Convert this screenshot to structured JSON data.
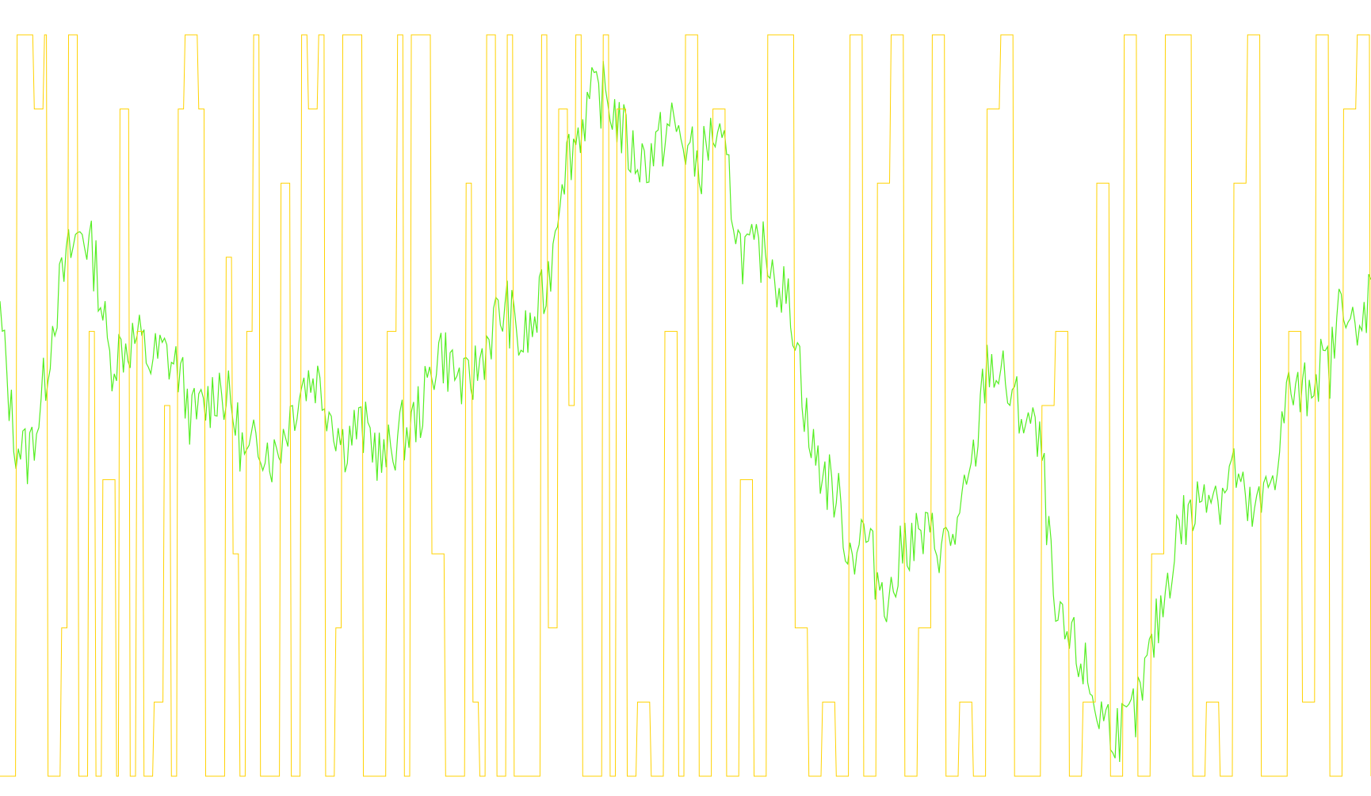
{
  "chart_data": {
    "type": "line",
    "title": "",
    "xlabel": "",
    "ylabel": "",
    "grid": false,
    "legend": "none",
    "colors": {
      "background": "#ffffff",
      "price": "#55ee22",
      "oscillator": "#ffd200"
    },
    "series": [
      {
        "key": "price",
        "color": "#55ee22",
        "ylim": [
          0,
          1
        ],
        "x": [
          0,
          10,
          20,
          30,
          40,
          50,
          60,
          70,
          80,
          90,
          100,
          110,
          120,
          130,
          140,
          150,
          160,
          170,
          180,
          190,
          200,
          210,
          220,
          230,
          240,
          250,
          260,
          270,
          280,
          290,
          300,
          310,
          320,
          330,
          340,
          350,
          360,
          370,
          380,
          390,
          400,
          410,
          420,
          430,
          440,
          450,
          460,
          470,
          480,
          490,
          500,
          510,
          520,
          530,
          540,
          550,
          560,
          570,
          580,
          590,
          600,
          610,
          620,
          630,
          640,
          650,
          660,
          670,
          680,
          690,
          700,
          710,
          720,
          730,
          740,
          750,
          760,
          770,
          780,
          790,
          800,
          810,
          820,
          830,
          840,
          850,
          860,
          870,
          880,
          890,
          900,
          910,
          920,
          930,
          940,
          950,
          960,
          970,
          980,
          990,
          1000
        ],
        "values": [
          0.62,
          0.46,
          0.43,
          0.5,
          0.63,
          0.7,
          0.74,
          0.69,
          0.56,
          0.58,
          0.59,
          0.56,
          0.57,
          0.55,
          0.48,
          0.5,
          0.53,
          0.49,
          0.42,
          0.46,
          0.43,
          0.48,
          0.53,
          0.54,
          0.5,
          0.45,
          0.47,
          0.46,
          0.42,
          0.46,
          0.47,
          0.51,
          0.58,
          0.55,
          0.52,
          0.56,
          0.61,
          0.63,
          0.58,
          0.61,
          0.67,
          0.82,
          0.86,
          0.91,
          0.92,
          0.89,
          0.84,
          0.83,
          0.85,
          0.88,
          0.85,
          0.82,
          0.87,
          0.82,
          0.71,
          0.7,
          0.71,
          0.66,
          0.61,
          0.45,
          0.41,
          0.38,
          0.3,
          0.33,
          0.27,
          0.24,
          0.32,
          0.32,
          0.32,
          0.31,
          0.34,
          0.42,
          0.56,
          0.54,
          0.5,
          0.48,
          0.43,
          0.2,
          0.18,
          0.15,
          0.09,
          0.07,
          0.06,
          0.09,
          0.17,
          0.25,
          0.34,
          0.35,
          0.4,
          0.38,
          0.42,
          0.35,
          0.36,
          0.42,
          0.52,
          0.51,
          0.55,
          0.55,
          0.66,
          0.57,
          0.67
        ],
        "y_from_top": true
      },
      {
        "key": "oscillator",
        "color": "#ffd200",
        "ylim": [
          0,
          1
        ],
        "x": [
          0,
          2,
          5,
          8,
          10,
          13,
          14,
          16,
          18,
          20,
          23,
          26,
          28,
          30,
          34,
          35,
          38,
          40,
          42,
          45,
          48,
          50,
          52,
          54,
          56,
          58,
          60,
          63,
          66,
          68,
          70,
          72,
          74,
          76,
          79,
          82,
          85,
          88,
          90,
          93,
          95,
          98,
          100,
          103,
          106,
          110,
          113,
          116,
          118,
          120,
          123,
          126,
          130,
          134,
          136,
          138,
          140,
          142,
          145,
          148,
          150,
          154,
          158,
          160,
          163,
          166,
          168,
          170,
          173,
          176,
          178,
          180,
          183,
          186,
          190,
          194,
          198,
          200,
          204,
          208,
          212,
          216,
          220,
          224,
          228,
          232,
          236,
          240,
          244,
          248,
          252,
          256,
          260,
          264,
          268,
          272,
          276,
          280,
          284,
          288,
          292,
          296,
          300,
          304,
          308,
          312,
          316,
          320,
          324,
          328,
          332,
          336,
          340,
          344,
          348,
          352,
          356,
          360,
          364,
          368,
          372,
          376,
          380,
          384,
          388,
          392,
          396,
          400
        ],
        "values": [
          0.0,
          0.0,
          1.0,
          1.0,
          0.9,
          1.0,
          0.0,
          0.0,
          0.2,
          1.0,
          0.0,
          0.6,
          0.0,
          0.4,
          0.0,
          0.9,
          0.0,
          0.6,
          0.0,
          0.1,
          0.5,
          0.0,
          0.9,
          1.0,
          1.0,
          0.9,
          0.0,
          0.0,
          0.7,
          0.3,
          0.0,
          0.6,
          1.0,
          0.0,
          0.0,
          0.8,
          0.0,
          1.0,
          0.9,
          1.0,
          0.0,
          0.2,
          1.0,
          1.0,
          0.0,
          0.0,
          0.6,
          1.0,
          0.0,
          1.0,
          1.0,
          0.3,
          0.0,
          0.0,
          0.8,
          0.1,
          0.0,
          1.0,
          0.0,
          1.0,
          0.0,
          0.0,
          1.0,
          0.2,
          0.9,
          0.5,
          1.0,
          0.0,
          0.0,
          1.0,
          0.0,
          0.9,
          0.0,
          0.1,
          0.0,
          0.6,
          0.0,
          1.0,
          0.0,
          0.9,
          0.0,
          0.4,
          0.0,
          1.0,
          1.0,
          0.2,
          0.0,
          0.1,
          0.0,
          1.0,
          0.0,
          0.8,
          1.0,
          0.0,
          0.2,
          1.0,
          0.0,
          0.1,
          0.0,
          0.9,
          1.0,
          0.0,
          0.0,
          0.5,
          0.6,
          0.0,
          0.1,
          0.8,
          0.0,
          1.0,
          0.0,
          0.3,
          1.0,
          1.0,
          0.0,
          0.1,
          0.0,
          0.8,
          1.0,
          0.0,
          0.0,
          0.6,
          0.1,
          1.0,
          0.0,
          0.9,
          1.0,
          0.0
        ]
      }
    ]
  }
}
